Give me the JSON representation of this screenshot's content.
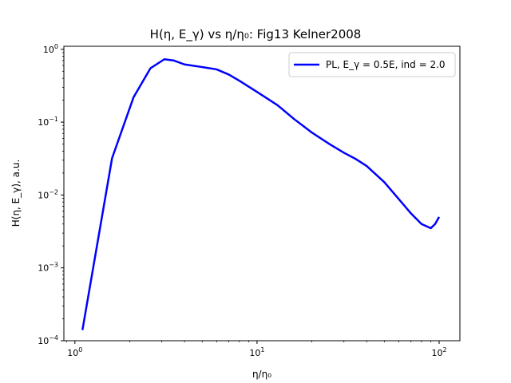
{
  "chart_data": {
    "type": "line",
    "title": "H(η, E_γ) vs  η/η₀: Fig13 Kelner2008",
    "xlabel": "η/η₀",
    "ylabel": "H(η, E_γ), a.u.",
    "xscale": "log",
    "yscale": "log",
    "xlim": [
      0.87,
      130
    ],
    "ylim": [
      0.0001,
      1.1
    ],
    "xticks": [
      {
        "value": 1,
        "base": "10",
        "exp": "0"
      },
      {
        "value": 10,
        "base": "10",
        "exp": "1"
      },
      {
        "value": 100,
        "base": "10",
        "exp": "2"
      }
    ],
    "yticks": [
      {
        "value": 0.0001,
        "base": "10",
        "exp": "−4"
      },
      {
        "value": 0.001,
        "base": "10",
        "exp": "−3"
      },
      {
        "value": 0.01,
        "base": "10",
        "exp": "−2"
      },
      {
        "value": 0.1,
        "base": "10",
        "exp": "−1"
      },
      {
        "value": 1,
        "base": "10",
        "exp": "0"
      }
    ],
    "legend_position": "top-right",
    "series": [
      {
        "name": "PL, E_γ = 0.5E, ind = 2.0",
        "color": "#0000ff",
        "x": [
          1.1,
          1.6,
          2.1,
          2.6,
          3.1,
          3.5,
          4.0,
          5.0,
          6.0,
          7.0,
          8.0,
          10.0,
          13.0,
          16.0,
          20.0,
          25.0,
          30.0,
          35.0,
          40.0,
          50.0,
          60.0,
          70.0,
          80.0,
          90.0,
          95.0,
          100.0
        ],
        "y": [
          0.00014,
          0.032,
          0.22,
          0.55,
          0.73,
          0.7,
          0.62,
          0.57,
          0.53,
          0.45,
          0.37,
          0.26,
          0.17,
          0.11,
          0.072,
          0.05,
          0.038,
          0.031,
          0.025,
          0.015,
          0.0088,
          0.0056,
          0.004,
          0.0035,
          0.004,
          0.005
        ]
      }
    ]
  }
}
